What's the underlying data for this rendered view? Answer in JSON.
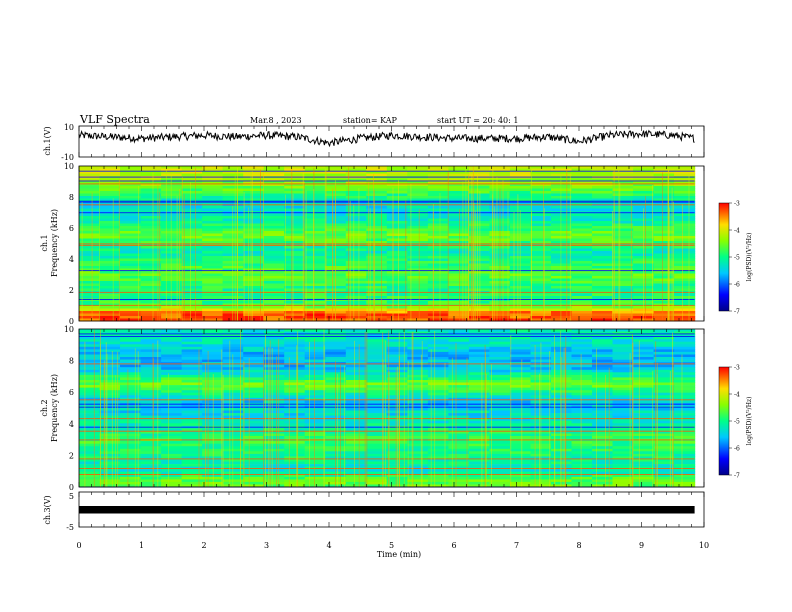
{
  "header": {
    "title": "VLF Spectra",
    "date": "Mar.8 , 2023",
    "station": "station= KAP",
    "start": "start UT = 20: 40: 1"
  },
  "chart_data": [
    {
      "type": "line",
      "panel": "ch1-waveform",
      "ylabel": "ch.1(V)",
      "ylim": [
        -10,
        10
      ],
      "y_ticks": [
        "10",
        "-10"
      ],
      "xlim": [
        0,
        10
      ],
      "x_ticks": [
        "0",
        "1",
        "2",
        "3",
        "4",
        "5",
        "6",
        "7",
        "8",
        "9",
        "10"
      ],
      "data_end_min": 9.85,
      "approx_envelope": [
        {
          "x": 0.0,
          "y": 4
        },
        {
          "x": 0.5,
          "y": 3
        },
        {
          "x": 1.0,
          "y": 2
        },
        {
          "x": 1.5,
          "y": 3
        },
        {
          "x": 2.0,
          "y": 4
        },
        {
          "x": 2.5,
          "y": 3
        },
        {
          "x": 3.0,
          "y": 4
        },
        {
          "x": 3.5,
          "y": 3
        },
        {
          "x": 4.0,
          "y": -1
        },
        {
          "x": 4.5,
          "y": 2
        },
        {
          "x": 5.0,
          "y": 4
        },
        {
          "x": 5.5,
          "y": 3
        },
        {
          "x": 6.0,
          "y": 2
        },
        {
          "x": 6.5,
          "y": 2
        },
        {
          "x": 7.0,
          "y": 2
        },
        {
          "x": 7.5,
          "y": 3
        },
        {
          "x": 8.0,
          "y": 0
        },
        {
          "x": 8.5,
          "y": 4
        },
        {
          "x": 9.0,
          "y": 5
        },
        {
          "x": 9.5,
          "y": 4
        },
        {
          "x": 9.85,
          "y": 2
        }
      ]
    },
    {
      "type": "heatmap",
      "panel": "ch1-spectrogram",
      "ylabel_line1": "ch.1",
      "ylabel_line2": "Frequency (kHz)",
      "ylim": [
        0,
        10
      ],
      "y_ticks": [
        "0",
        "2",
        "4",
        "6",
        "8",
        "10"
      ],
      "xlim": [
        0,
        10
      ],
      "data_end_min": 9.85,
      "colorbar": {
        "label": "log(PSD)(V²/Hz)",
        "range": [
          -7,
          -3
        ],
        "ticks": [
          "-3",
          "-4",
          "-5",
          "-6",
          "-7"
        ]
      },
      "approx_background_logpsd": [
        {
          "f_khz": 0.5,
          "v": -3.3
        },
        {
          "f_khz": 1.0,
          "v": -4.8
        },
        {
          "f_khz": 2.0,
          "v": -5.0
        },
        {
          "f_khz": 3.0,
          "v": -4.6
        },
        {
          "f_khz": 4.5,
          "v": -5.2
        },
        {
          "f_khz": 5.5,
          "v": -4.5
        },
        {
          "f_khz": 6.5,
          "v": -5.2
        },
        {
          "f_khz": 7.5,
          "v": -5.4
        },
        {
          "f_khz": 8.5,
          "v": -4.6
        },
        {
          "f_khz": 9.5,
          "v": -4.1
        }
      ]
    },
    {
      "type": "heatmap",
      "panel": "ch2-spectrogram",
      "ylabel_line1": "ch.2",
      "ylabel_line2": "Frequency (kHz)",
      "ylim": [
        0,
        10
      ],
      "y_ticks": [
        "0",
        "2",
        "4",
        "6",
        "8",
        "10"
      ],
      "xlim": [
        0,
        10
      ],
      "data_end_min": 9.85,
      "colorbar": {
        "label": "log(PSD)(V²/Hz)",
        "range": [
          -7,
          -3
        ],
        "ticks": [
          "-3",
          "-4",
          "-5",
          "-6",
          "-7"
        ]
      },
      "approx_background_logpsd": [
        {
          "f_khz": 0.5,
          "v": -4.6
        },
        {
          "f_khz": 1.0,
          "v": -5.3
        },
        {
          "f_khz": 2.0,
          "v": -5.0
        },
        {
          "f_khz": 3.0,
          "v": -4.8
        },
        {
          "f_khz": 4.5,
          "v": -5.4
        },
        {
          "f_khz": 5.5,
          "v": -5.5
        },
        {
          "f_khz": 6.5,
          "v": -4.5
        },
        {
          "f_khz": 7.5,
          "v": -5.6
        },
        {
          "f_khz": 8.5,
          "v": -5.6
        },
        {
          "f_khz": 9.5,
          "v": -5.2
        }
      ]
    },
    {
      "type": "line",
      "panel": "ch3-waveform",
      "ylabel": "ch.3(V)",
      "ylim": [
        -5,
        5
      ],
      "y_ticks": [
        "5",
        "-5"
      ],
      "xlim": [
        0,
        10
      ],
      "x_ticks": [
        "0",
        "1",
        "2",
        "3",
        "4",
        "5",
        "6",
        "7",
        "8",
        "9",
        "10"
      ],
      "xlabel": "Time (min)",
      "data_end_min": 9.85,
      "approx_band": {
        "center": 0.5,
        "half_width": 0.5
      }
    }
  ]
}
